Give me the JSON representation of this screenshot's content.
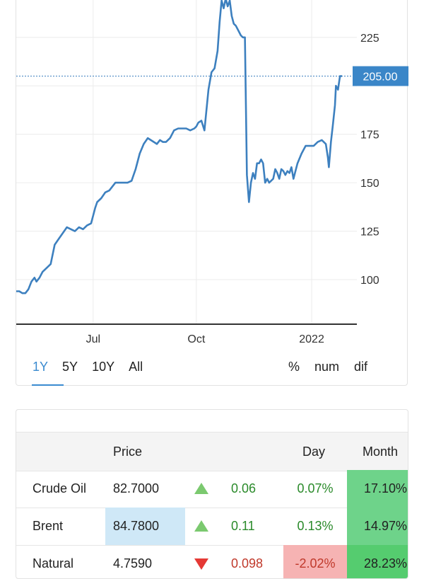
{
  "chart_data": {
    "type": "line",
    "series": [
      {
        "values": [
          [
            0,
            94
          ],
          [
            3,
            94
          ],
          [
            6,
            93
          ],
          [
            9,
            93
          ],
          [
            12,
            95
          ],
          [
            15,
            99
          ],
          [
            18,
            101
          ],
          [
            20,
            99
          ],
          [
            23,
            101
          ],
          [
            26,
            104
          ],
          [
            28,
            105
          ],
          [
            30,
            106
          ],
          [
            34,
            108
          ],
          [
            38,
            118
          ],
          [
            42,
            121
          ],
          [
            46,
            124
          ],
          [
            50,
            127
          ],
          [
            54,
            126
          ],
          [
            58,
            125
          ],
          [
            62,
            127
          ],
          [
            66,
            126
          ],
          [
            70,
            128
          ],
          [
            74,
            129
          ],
          [
            76,
            133
          ],
          [
            78,
            137
          ],
          [
            80,
            140
          ],
          [
            84,
            142
          ],
          [
            88,
            145
          ],
          [
            92,
            146
          ],
          [
            95,
            148
          ],
          [
            98,
            150
          ],
          [
            102,
            150
          ],
          [
            106,
            150
          ],
          [
            110,
            150
          ],
          [
            114,
            151
          ],
          [
            118,
            157
          ],
          [
            122,
            165
          ],
          [
            126,
            170
          ],
          [
            130,
            173
          ],
          [
            133,
            172
          ],
          [
            136,
            171
          ],
          [
            139,
            170
          ],
          [
            142,
            172
          ],
          [
            145,
            171
          ],
          [
            148,
            171
          ],
          [
            152,
            173
          ],
          [
            156,
            177
          ],
          [
            160,
            178
          ],
          [
            164,
            178
          ],
          [
            168,
            178
          ],
          [
            172,
            177
          ],
          [
            176,
            178
          ],
          [
            178,
            179
          ],
          [
            180,
            181
          ],
          [
            183,
            182
          ],
          [
            186,
            177
          ],
          [
            190,
            198
          ],
          [
            193,
            207
          ],
          [
            196,
            209
          ],
          [
            199,
            218
          ],
          [
            201,
            233
          ],
          [
            203,
            244
          ],
          [
            205,
            240
          ],
          [
            207,
            245
          ],
          [
            209,
            241
          ],
          [
            211,
            244
          ],
          [
            213,
            236
          ],
          [
            215,
            232
          ],
          [
            217,
            231
          ],
          [
            220,
            228
          ],
          [
            222,
            226
          ],
          [
            224,
            225
          ],
          [
            226,
            225
          ],
          [
            228,
            154
          ],
          [
            230,
            140
          ],
          [
            232,
            150
          ],
          [
            234,
            155
          ],
          [
            236,
            152
          ],
          [
            238,
            160
          ],
          [
            240,
            160
          ],
          [
            242,
            162
          ],
          [
            244,
            160
          ],
          [
            246,
            150
          ],
          [
            248,
            152
          ],
          [
            250,
            150
          ],
          [
            254,
            152
          ],
          [
            256,
            157
          ],
          [
            258,
            155
          ],
          [
            260,
            152
          ],
          [
            262,
            157
          ],
          [
            264,
            156
          ],
          [
            266,
            154
          ],
          [
            268,
            156
          ],
          [
            270,
            155
          ],
          [
            272,
            158
          ],
          [
            274,
            152
          ],
          [
            276,
            156
          ],
          [
            278,
            160
          ],
          [
            282,
            165
          ],
          [
            286,
            169
          ],
          [
            290,
            169
          ],
          [
            294,
            169
          ],
          [
            298,
            171
          ],
          [
            302,
            172
          ],
          [
            306,
            170
          ],
          [
            308,
            163
          ],
          [
            309,
            158
          ],
          [
            311,
            171
          ],
          [
            313,
            180
          ],
          [
            315,
            190
          ],
          [
            316,
            200
          ],
          [
            318,
            198
          ],
          [
            320,
            205
          ],
          [
            322,
            205
          ]
        ]
      }
    ],
    "x_tick_labels": [
      {
        "label": "Jul",
        "x": 76
      },
      {
        "label": "Oct",
        "x": 178
      },
      {
        "label": "2022",
        "x": 292
      }
    ],
    "y_tick_labels": [
      "100",
      "125",
      "150",
      "175",
      "225"
    ],
    "ylim": [
      77,
      245
    ],
    "current_value": "205.00",
    "current_value_y": 205,
    "colors": {
      "line": "#3d80bf",
      "label_bg": "#3a86c8"
    }
  },
  "range_tabs": [
    "1Y",
    "5Y",
    "10Y",
    "All"
  ],
  "mode_tabs": [
    "%",
    "num",
    "dif"
  ],
  "table": {
    "headers": {
      "price": "Price",
      "day": "Day",
      "month": "Month"
    },
    "rows": [
      {
        "name": "Crude Oil",
        "price": "82.7000",
        "change": "0.06",
        "pct": "0.07%",
        "month": "17.10%",
        "direction": "up",
        "month_color": "#6ed38a",
        "price_highlight": false
      },
      {
        "name": "Brent",
        "price": "84.7800",
        "change": "0.11",
        "pct": "0.13%",
        "month": "14.97%",
        "direction": "up",
        "month_color": "#6ed38a",
        "price_highlight": true
      },
      {
        "name": "Natural",
        "price": "4.7590",
        "change": "0.098",
        "pct": "-2.02%",
        "month": "28.23%",
        "direction": "down",
        "month_color": "#55cc6f",
        "pct_bg": "#f6b3b3",
        "price_highlight": false
      }
    ]
  }
}
